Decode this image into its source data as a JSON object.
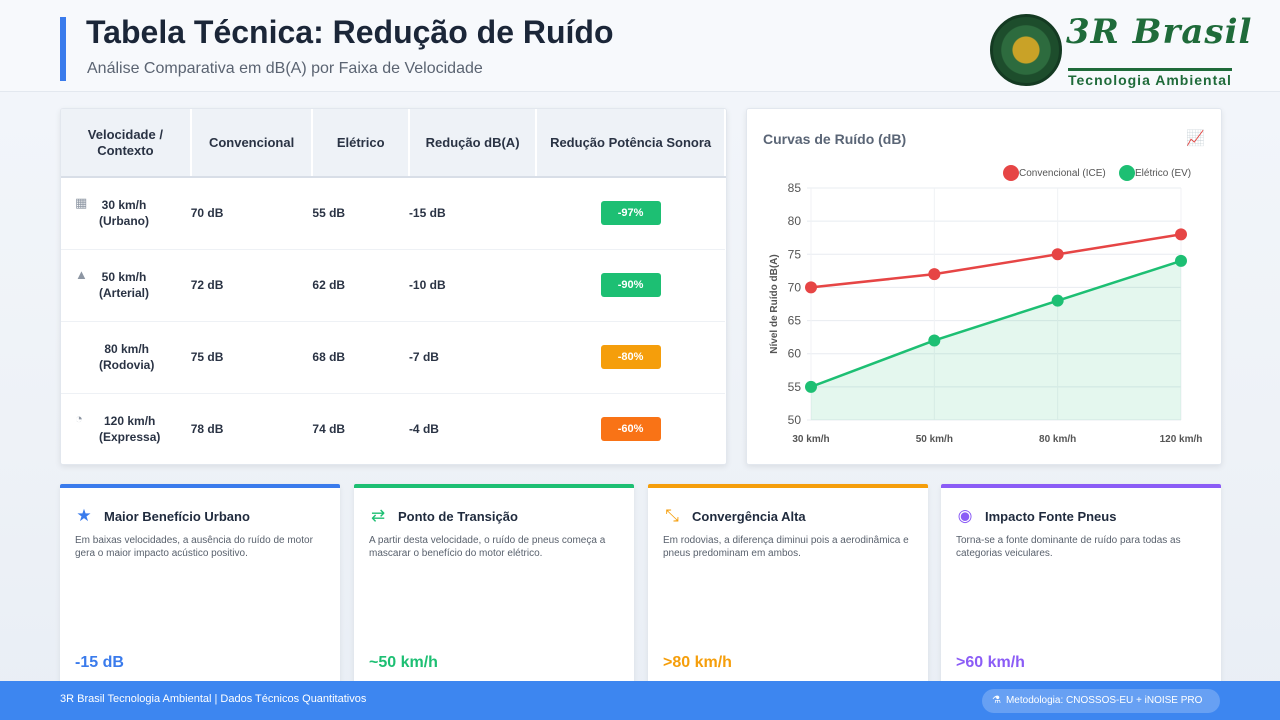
{
  "header": {
    "title": "Tabela Técnica: Redução de Ruído",
    "subtitle": "Análise Comparativa em dB(A) por Faixa de Velocidade",
    "logo_brand": "3R Brasil",
    "logo_tagline": "Tecnologia Ambiental"
  },
  "table": {
    "headers": [
      "Velocidade / Contexto",
      "Convencional",
      "Elétrico",
      "Redução dB(A)",
      "Redução Potência Sonora"
    ],
    "rows": [
      {
        "icon": "building-icon",
        "glyph": "▦",
        "speed": "30 km/h",
        "context": "(Urbano)",
        "conv": "70 dB",
        "elec": "55 dB",
        "red": "-15 dB",
        "power": "-97%",
        "color": "#1dbf73"
      },
      {
        "icon": "road-icon",
        "glyph": "▲",
        "speed": "50 km/h",
        "context": "(Arterial)",
        "conv": "72 dB",
        "elec": "62 dB",
        "red": "-10 dB",
        "power": "-90%",
        "color": "#1dbf73"
      },
      {
        "icon": "",
        "glyph": "",
        "speed": "80 km/h",
        "context": "(Rodovia)",
        "conv": "75 dB",
        "elec": "68 dB",
        "red": "-7 dB",
        "power": "-80%",
        "color": "#f59e0b"
      },
      {
        "icon": "gauge-icon",
        "glyph": "◔",
        "speed": "120 km/h",
        "context": "(Expressa)",
        "conv": "78 dB",
        "elec": "74 dB",
        "red": "-4 dB",
        "power": "-60%",
        "color": "#f97316"
      }
    ]
  },
  "chart": {
    "title": "Curvas de Ruído (dB)",
    "icon": "line-chart-icon"
  },
  "chart_data": {
    "type": "line",
    "categories": [
      "30 km/h",
      "50 km/h",
      "80 km/h",
      "120 km/h"
    ],
    "series": [
      {
        "name": "Convencional (ICE)",
        "values": [
          70,
          72,
          75,
          78
        ],
        "color": "#e64545",
        "fill": false
      },
      {
        "name": "Elétrico (EV)",
        "values": [
          55,
          62,
          68,
          74
        ],
        "color": "#1dbf73",
        "fill": true
      }
    ],
    "ylabel": "Nível de Ruído dB(A)",
    "ylim": [
      50,
      85
    ],
    "yticks": [
      50,
      55,
      60,
      65,
      70,
      75,
      80,
      85
    ],
    "grid": true,
    "legend": "top-right"
  },
  "cards": [
    {
      "title": "Maior Benefício Urbano",
      "icon": "star-icon",
      "glyph": "★",
      "desc": "Em baixas velocidades, a ausência do ruído de motor gera o maior impacto acústico positivo.",
      "metric": "-15 dB",
      "color": "#3a7bec"
    },
    {
      "title": "Ponto de Transição",
      "icon": "swap-arrows-icon",
      "glyph": "⇄",
      "desc": "A partir desta velocidade, o ruído de pneus começa a mascarar o benefício do motor elétrico.",
      "metric": "~50 km/h",
      "color": "#1dbf73"
    },
    {
      "title": "Convergência Alta",
      "icon": "compress-icon",
      "glyph": "⤡",
      "desc": "Em rodovias, a diferença diminui pois a aerodinâmica e pneus predominam em ambos.",
      "metric": ">80 km/h",
      "color": "#f59e0b"
    },
    {
      "title": "Impacto Fonte Pneus",
      "icon": "tire-icon",
      "glyph": "◉",
      "desc": "Torna-se a fonte dominante de ruído para todas as categorias veiculares.",
      "metric": ">60 km/h",
      "color": "#8b5cf6"
    }
  ],
  "footer": {
    "text": "3R Brasil Tecnologia Ambiental | Dados Técnicos Quantitativos",
    "pill_icon": "flask-icon",
    "pill_glyph": "⚗",
    "pill": "Metodologia: CNOSSOS-EU + iNOISE PRO"
  }
}
